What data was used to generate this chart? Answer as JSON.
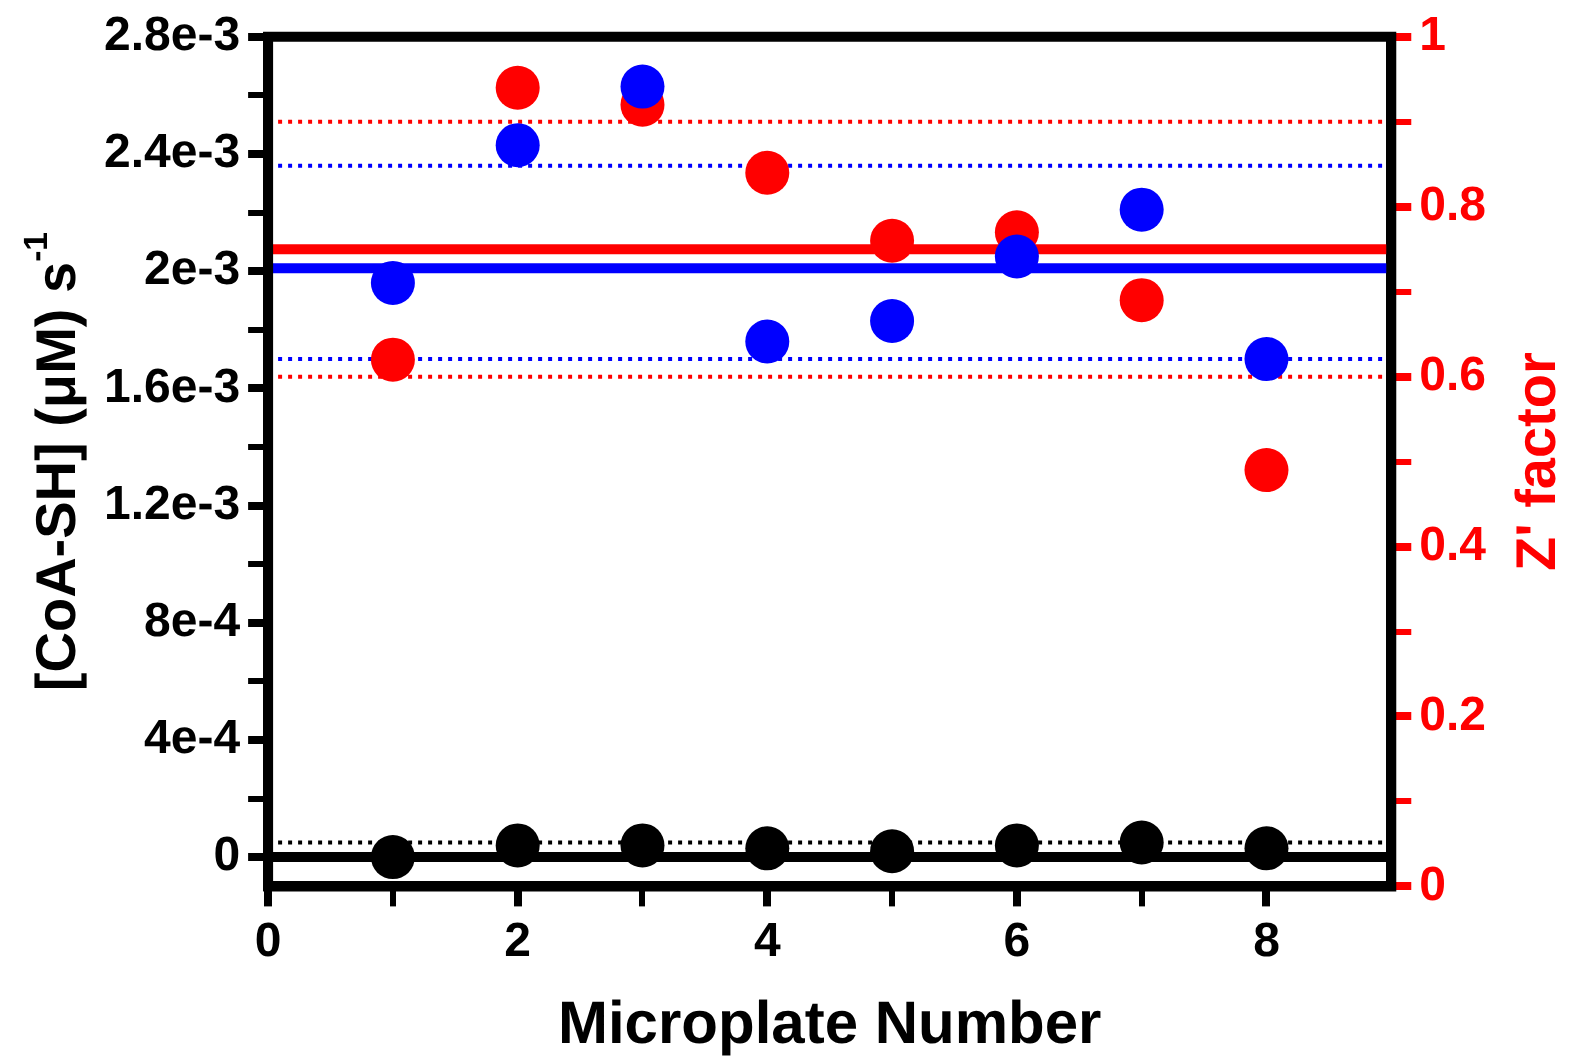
{
  "chart_data": {
    "type": "scatter",
    "xlabel": "Microplate Number",
    "ylabel": "[CoA-SH] (μM) s$^{-1}$",
    "y2label": "Z' factor",
    "x": [
      1,
      2,
      3,
      4,
      5,
      6,
      7,
      8
    ],
    "series": [
      {
        "color": "#0000ff",
        "values": [
          0.00196,
          0.00243,
          0.00263,
          0.00176,
          0.00183,
          0.00205,
          0.00221,
          0.0017
        ]
      },
      {
        "color": "#ff0000",
        "axis": "y2",
        "values": [
          0.62,
          0.94,
          0.92,
          0.84,
          0.76,
          0.77,
          0.69,
          0.49
        ]
      },
      {
        "color": "#000000",
        "values": [
          0.0,
          4e-05,
          4e-05,
          3e-05,
          2e-05,
          4e-05,
          5e-05,
          3e-05
        ]
      }
    ],
    "xlim": [
      0,
      9
    ],
    "xticks": [
      0,
      {
        "value": 1,
        "label": null
      },
      2,
      {
        "value": 3,
        "label": null
      },
      4,
      {
        "value": 5,
        "label": null
      },
      6,
      {
        "value": 7,
        "label": null
      },
      8
    ],
    "ylim": [
      -0.0001,
      0.0028
    ],
    "yticks": [
      0,
      {
        "value": 0.0002,
        "label": null
      },
      {
        "value": 0.0004,
        "label": "4e-4"
      },
      {
        "value": 0.0006,
        "label": null
      },
      {
        "value": 0.0008,
        "label": "8e-4"
      },
      {
        "value": 0.001,
        "label": null
      },
      {
        "value": 0.0012,
        "label": "1.2e-3"
      },
      {
        "value": 0.0014,
        "label": null
      },
      {
        "value": 0.0016,
        "label": "1.6e-3"
      },
      {
        "value": 0.0018,
        "label": null
      },
      {
        "value": 0.002,
        "label": "2e-3"
      },
      {
        "value": 0.0022,
        "label": null
      },
      {
        "value": 0.0024,
        "label": "2.4e-3"
      },
      {
        "value": 0.0026,
        "label": null
      },
      {
        "value": 0.0028,
        "label": "2.8e-3"
      }
    ],
    "y2lim": [
      0,
      1
    ],
    "y2ticks": [
      0,
      {
        "value": 0.1,
        "label": null
      },
      0.2,
      {
        "value": 0.3,
        "label": null
      },
      0.4,
      {
        "value": 0.5,
        "label": null
      },
      0.6,
      {
        "value": 0.7,
        "label": null
      },
      0.8,
      {
        "value": 0.9,
        "label": null
      },
      1
    ],
    "ref_lines": [
      {
        "axis": "y",
        "value": 0.00201,
        "color": "#0000ff",
        "line_style": "solid"
      },
      {
        "axis": "y",
        "value": 0.00236,
        "color": "#0000ff",
        "line_style": "dotted"
      },
      {
        "axis": "y",
        "value": 0.0017,
        "color": "#0000ff",
        "line_style": "dotted"
      },
      {
        "axis": "y2",
        "value": 0.75,
        "color": "#ff0000",
        "line_style": "solid"
      },
      {
        "axis": "y2",
        "value": 0.9,
        "color": "#ff0000",
        "line_style": "dotted"
      },
      {
        "axis": "y2",
        "value": 0.6,
        "color": "#ff0000",
        "line_style": "dotted"
      },
      {
        "axis": "y",
        "value": 5e-05,
        "color": "#000000",
        "line_style": "dotted"
      },
      {
        "axis": "y",
        "value": 0,
        "color": "#000000",
        "line_style": "solid"
      }
    ],
    "marker": "circle",
    "grid": false,
    "legend": false
  }
}
